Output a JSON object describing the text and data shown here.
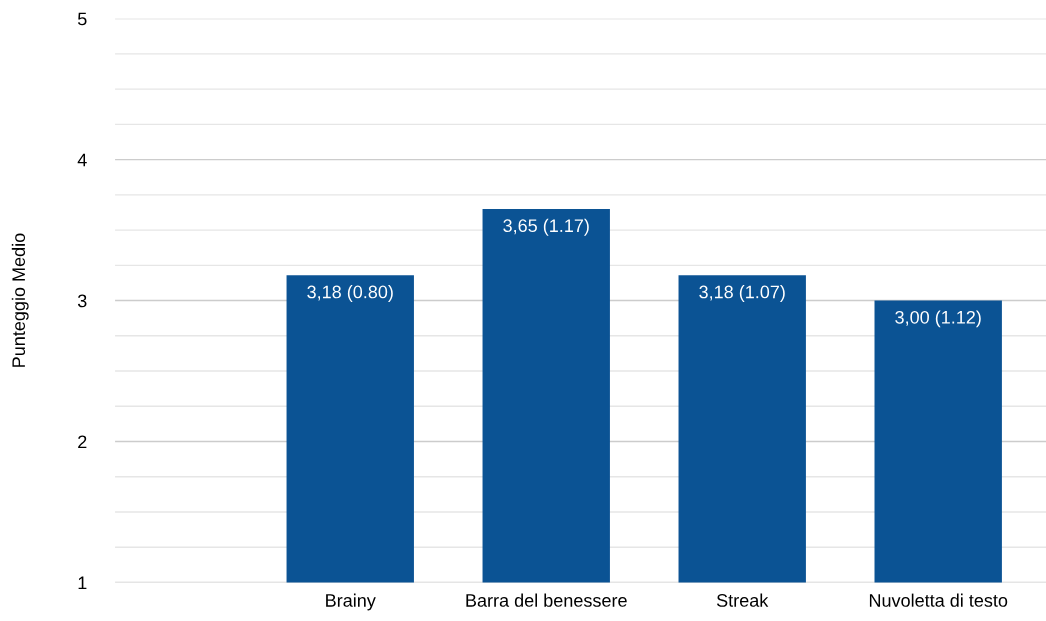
{
  "chart_data": {
    "type": "bar",
    "ylabel": "Punteggio Medio",
    "categories": [
      "Brainy",
      "Barra del benessere",
      "Streak",
      "Nuvoletta di testo"
    ],
    "values": [
      3.18,
      3.65,
      3.18,
      3.0
    ],
    "value_labels": [
      "3,18 (0.80)",
      "3,65 (1.17)",
      "3,18 (1.07)",
      "3,00 (1.12)"
    ],
    "color": "#0b5394",
    "ylim": [
      1,
      5
    ],
    "yticks": [
      1,
      {
        "value": 1.25,
        "label": null
      },
      {
        "value": 1.5,
        "label": null
      },
      {
        "value": 1.75,
        "label": null
      },
      2,
      {
        "value": 2.25,
        "label": null
      },
      {
        "value": 2.5,
        "label": null
      },
      {
        "value": 2.75,
        "label": null
      },
      3,
      {
        "value": 3.25,
        "label": null
      },
      {
        "value": 3.5,
        "label": null
      },
      {
        "value": 3.75,
        "label": null
      },
      4,
      {
        "value": 4.25,
        "label": null
      },
      {
        "value": 4.5,
        "label": null
      },
      {
        "value": 4.75,
        "label": null
      },
      5
    ],
    "grid": "y"
  }
}
